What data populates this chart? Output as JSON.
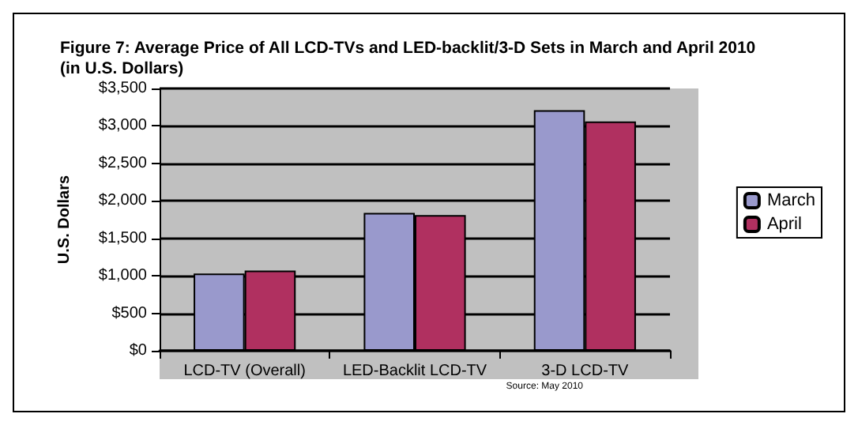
{
  "chart_data": {
    "type": "bar",
    "title": "Figure 7: Average Price of All LCD-TVs and LED-backlit/3-D Sets in March and April 2010\n(in U.S. Dollars)",
    "ylabel": "U.S. Dollars",
    "categories": [
      "LCD-TV (Overall)",
      "LED-Backlit LCD-TV",
      "3-D LCD-TV"
    ],
    "series": [
      {
        "name": "March",
        "color": "#9999cc",
        "values": [
          1030,
          1840,
          3210
        ]
      },
      {
        "name": "April",
        "color": "#b03060",
        "values": [
          1070,
          1810,
          3060
        ]
      }
    ],
    "ylim": [
      0,
      3500
    ],
    "yticks": [
      {
        "value": 0,
        "label": "$0"
      },
      {
        "value": 500,
        "label": "$500"
      },
      {
        "value": 1000,
        "label": "$1,000"
      },
      {
        "value": 1500,
        "label": "$1,500"
      },
      {
        "value": 2000,
        "label": "$2,000"
      },
      {
        "value": 2500,
        "label": "$2,500"
      },
      {
        "value": 3000,
        "label": "$3,000"
      },
      {
        "value": 3500,
        "label": "$3,500"
      }
    ],
    "grid": "y",
    "legend": "right",
    "annotations": [
      "Source: May 2010"
    ]
  }
}
